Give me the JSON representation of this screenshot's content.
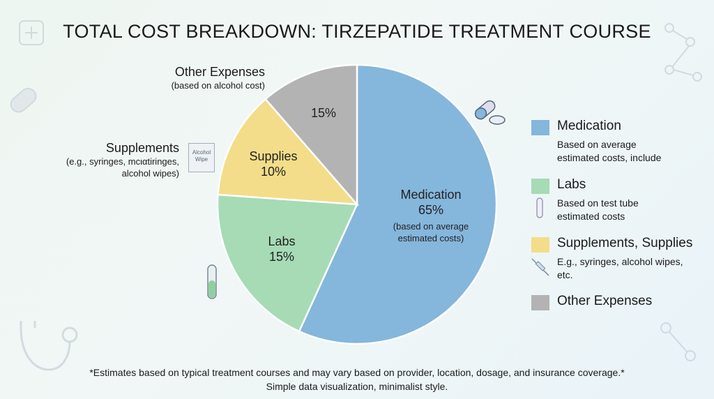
{
  "chart_data": {
    "type": "pie",
    "title": "TOTAL COST BREAKDOWN: TIRZEPATIDE TREATMENT COURSE",
    "slices": [
      {
        "name": "Medication",
        "value": 65,
        "label": "65%",
        "note": "(based on average estimated costs)",
        "color": "#85b6dc"
      },
      {
        "name": "Labs",
        "value": 15,
        "label": "15%",
        "color": "#a6dbb5"
      },
      {
        "name": "Supplies",
        "value": 10,
        "label": "10%",
        "color": "#f3dd8a"
      },
      {
        "name": "Other Expenses",
        "value": 15,
        "label": "15%",
        "color": "#b3b3b3"
      }
    ],
    "legend": [
      {
        "title": "Medication",
        "desc": [
          "Based on average",
          "estimated costs, include"
        ],
        "color": "#85b6dc"
      },
      {
        "title": "Labs",
        "desc": [
          "Based on test tube",
          "estimated costs"
        ],
        "color": "#a6dbb5"
      },
      {
        "title": "Supplements, Supplies",
        "desc": [
          "E.g., syringes, alcohol wipes,",
          "etc."
        ],
        "color": "#f3dd8a"
      },
      {
        "title": "Other Expenses",
        "desc": [],
        "color": "#b3b3b3"
      }
    ],
    "legend_position": "right",
    "callouts": {
      "other": {
        "title": "Other Expenses",
        "sub": "(based on alcohol cost)"
      },
      "supplements": {
        "title": "Supplements",
        "sub": [
          "(e.g., syringes, mcιαtiringes,",
          "alcohol wipes)"
        ]
      }
    }
  },
  "icons": {
    "wipe_label": [
      "Alcohol",
      "Wipe"
    ]
  },
  "footer": [
    "*Estimates based on typical treatment courses and may vary based on provider, location, dosage, and insurance coverage.*",
    "Simple data visualization, minimalist style."
  ]
}
